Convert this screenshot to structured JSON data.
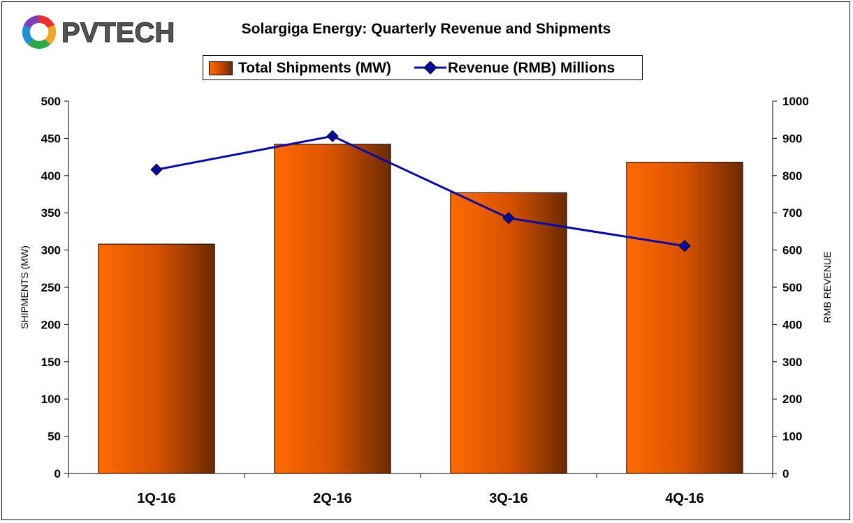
{
  "logo": {
    "text": "PVTECH",
    "colors": [
      "#e83030",
      "#f5a623",
      "#2ea84a",
      "#1f8fd8",
      "#7b3fb5"
    ]
  },
  "chart_data": {
    "type": "bar",
    "title": "Solargiga Energy: Quarterly Revenue and Shipments",
    "categories": [
      "1Q-16",
      "2Q-16",
      "3Q-16",
      "4Q-16"
    ],
    "series": [
      {
        "name": "Total Shipments (MW)",
        "type": "bar",
        "axis": "left",
        "values": [
          308,
          442,
          377,
          418
        ],
        "color": "#ff6a00"
      },
      {
        "name": "Revenue (RMB) Millions",
        "type": "line",
        "axis": "right",
        "values": [
          816,
          906,
          686,
          611
        ],
        "color": "#0a0aa0"
      }
    ],
    "ylabel": "SHIPMENTS (MW)",
    "y2label": "RMB REVENUE",
    "ylim": [
      0,
      500
    ],
    "y2lim": [
      0,
      1000
    ],
    "yticks": [
      "0",
      "50",
      "100",
      "150",
      "200",
      "250",
      "300",
      "350",
      "400",
      "450",
      "500"
    ],
    "y2ticks": [
      "0",
      "100",
      "200",
      "300",
      "400",
      "500",
      "600",
      "700",
      "800",
      "900",
      "1000"
    ],
    "grid": false,
    "legend_position": "top"
  }
}
